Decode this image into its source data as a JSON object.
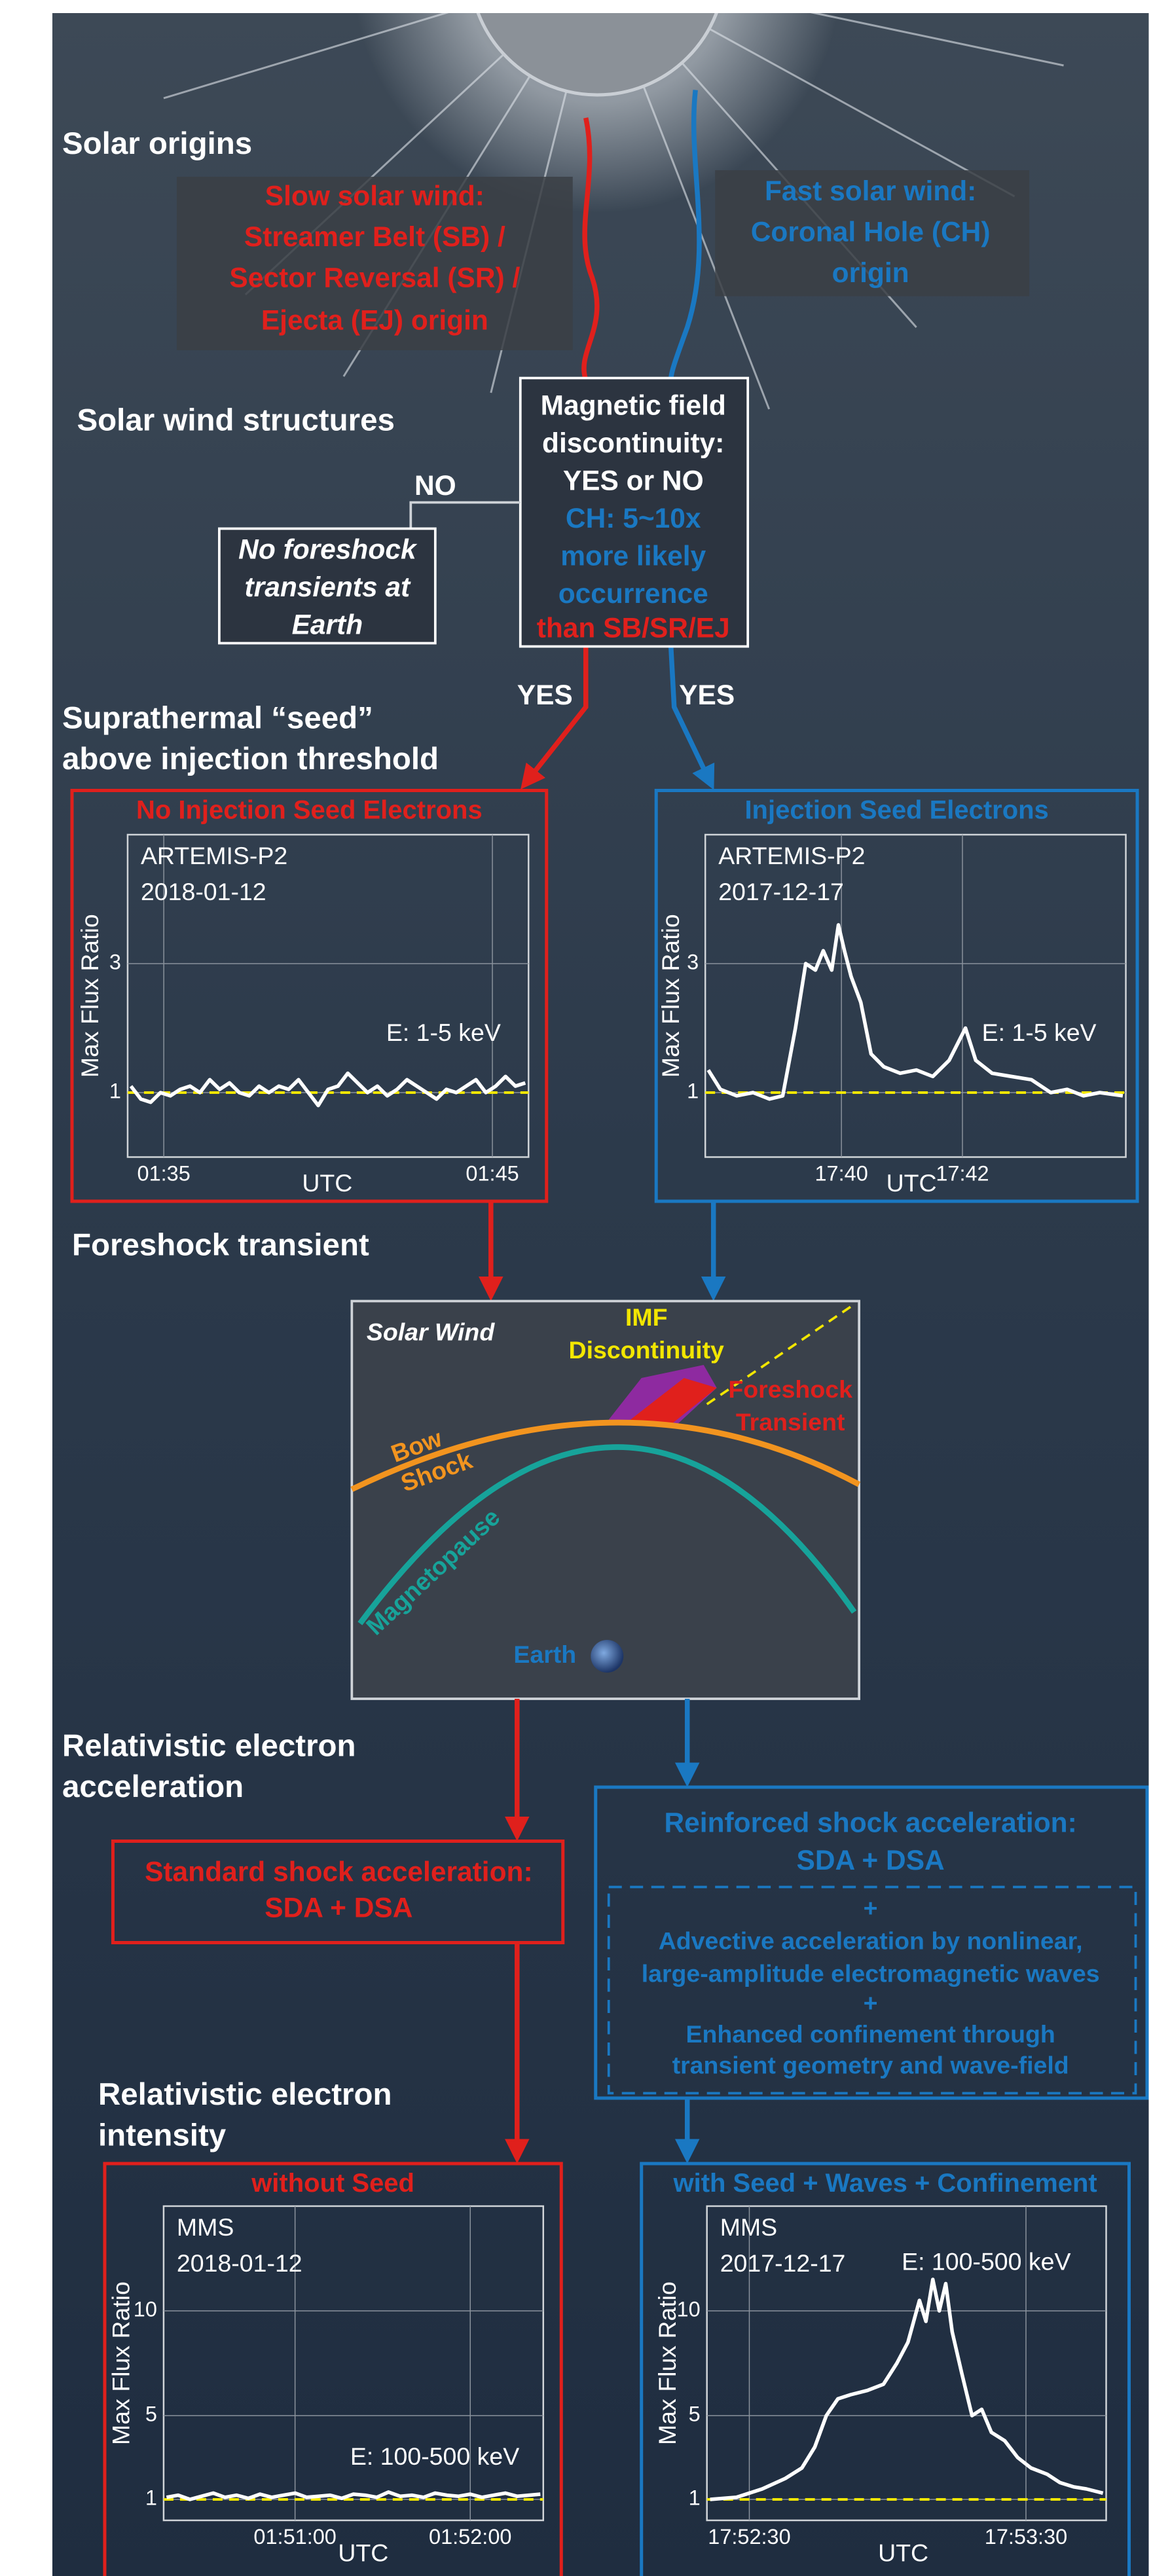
{
  "diagram": {
    "headings": [
      "Solar origins",
      "Solar wind structures",
      "Suprathermal “seed”",
      "above injection threshold",
      "Foreshock transient",
      "Relativistic electron",
      "acceleration",
      "Relativistic electron",
      "intensity"
    ],
    "slow_wind": [
      "Slow solar wind:",
      "Streamer Belt (SB) /",
      "Sector Reversal (SR) /",
      "Ejecta (EJ) origin"
    ],
    "fast_wind": [
      "Fast solar wind:",
      "Coronal Hole (CH)",
      "origin"
    ],
    "discontinuity_box": [
      "Magnetic field",
      "discontinuity:",
      "YES or NO",
      "CH: 5~10x",
      "more likely",
      "occurrence",
      "than SB/SR/EJ"
    ],
    "no_label": "NO",
    "no_box": [
      "No foreshock",
      "transients at",
      "Earth"
    ],
    "yes_labels": [
      "YES",
      "YES"
    ],
    "schematic": {
      "solar_wind": "Solar Wind",
      "imf": [
        "IMF",
        "Discontinuity"
      ],
      "foreshock": [
        "Foreshock",
        "Transient"
      ],
      "bow_shock": [
        "Bow",
        "Shock"
      ],
      "magnetopause": "Magnetopause",
      "earth": "Earth"
    },
    "standard_box": [
      "Standard shock acceleration:",
      "SDA + DSA"
    ],
    "reinforced_box": [
      "Reinforced shock acceleration:",
      "SDA + DSA"
    ],
    "reinforced_details": [
      "+",
      "Advective acceleration by nonlinear,",
      "large-amplitude electromagnetic waves",
      "+",
      "Enhanced confinement through",
      "transient geometry and wave-field"
    ]
  },
  "chart_data": [
    {
      "type": "line",
      "title": "No Injection Seed Electrons",
      "title_color": "#e0201c",
      "instrument": "ARTEMIS-P2",
      "date": "2018-01-12",
      "energy": "E: 1-5 keV",
      "ylabel": "Max Flux Ratio",
      "xlabel": "UTC",
      "xlim": [
        93.9,
        106.1
      ],
      "ylim": [
        0,
        5
      ],
      "grid": true,
      "xticks": [
        {
          "value": 95,
          "label": "01:35"
        },
        {
          "value": 105,
          "label": "01:45"
        }
      ],
      "yticks": [
        1,
        3
      ],
      "reference_line": 1,
      "reference_color": "#f2e600",
      "color": "#ffffff",
      "x": [
        94.0,
        94.3,
        94.6,
        94.9,
        95.2,
        95.5,
        95.8,
        96.1,
        96.4,
        96.7,
        97.0,
        97.3,
        97.6,
        97.9,
        98.2,
        98.5,
        98.8,
        99.1,
        99.4,
        99.7,
        100.0,
        100.3,
        100.6,
        100.9,
        101.2,
        101.5,
        101.8,
        102.1,
        102.4,
        102.7,
        103.0,
        103.3,
        103.6,
        103.9,
        104.2,
        104.5,
        104.8,
        105.1,
        105.4,
        105.7,
        106.0
      ],
      "values": [
        1.1,
        0.9,
        0.85,
        1.0,
        0.95,
        1.05,
        1.1,
        1.0,
        1.2,
        1.05,
        1.15,
        1.0,
        0.95,
        1.1,
        1.0,
        1.1,
        1.05,
        1.2,
        1.0,
        0.8,
        1.05,
        1.1,
        1.3,
        1.15,
        1.0,
        1.1,
        0.95,
        1.05,
        1.2,
        1.1,
        1.0,
        0.9,
        1.05,
        1.0,
        1.1,
        1.2,
        1.0,
        1.1,
        1.25,
        1.1,
        1.15
      ]
    },
    {
      "type": "line",
      "title": "Injection Seed Electrons",
      "title_color": "#1a78c2",
      "instrument": "ARTEMIS-P2",
      "date": "2017-12-17",
      "energy": "E: 1-5 keV",
      "ylabel": "Max Flux Ratio",
      "xlabel": "UTC",
      "xlim": [
        1057.75,
        1064.7
      ],
      "ylim": [
        0,
        5
      ],
      "grid": true,
      "xticks": [
        {
          "value": 1060,
          "label": "17:40"
        },
        {
          "value": 1062,
          "label": "17:42"
        }
      ],
      "yticks": [
        1,
        3
      ],
      "reference_line": 1,
      "reference_color": "#f2e600",
      "color": "#ffffff",
      "x": [
        1057.8,
        1058.0,
        1058.27,
        1058.54,
        1058.81,
        1059.03,
        1059.24,
        1059.41,
        1059.57,
        1059.7,
        1059.84,
        1059.95,
        1060.05,
        1060.16,
        1060.32,
        1060.49,
        1060.7,
        1060.97,
        1061.24,
        1061.51,
        1061.78,
        1062.05,
        1062.22,
        1062.49,
        1062.81,
        1063.14,
        1063.46,
        1063.73,
        1064.0,
        1064.27,
        1064.65
      ],
      "values": [
        1.35,
        1.05,
        0.95,
        1.0,
        0.9,
        0.95,
        2.0,
        3.0,
        2.9,
        3.2,
        2.9,
        3.6,
        3.2,
        2.8,
        2.4,
        1.6,
        1.4,
        1.3,
        1.35,
        1.25,
        1.5,
        2.0,
        1.5,
        1.3,
        1.25,
        1.2,
        1.0,
        1.05,
        0.95,
        1.0,
        0.95
      ]
    },
    {
      "type": "line",
      "title": "without Seed",
      "title_color": "#e0201c",
      "instrument": "MMS",
      "date": "2018-01-12",
      "energy": "E: 100-500 keV",
      "ylabel": "Max Flux Ratio",
      "xlabel": "UTC",
      "xlim": [
        6615,
        6745
      ],
      "ylim": [
        0,
        15
      ],
      "grid": true,
      "xticks": [
        {
          "value": 6660,
          "label": "01:51:00"
        },
        {
          "value": 6720,
          "label": "01:52:00"
        }
      ],
      "yticks": [
        1,
        5,
        10
      ],
      "reference_line": 1,
      "reference_color": "#f2e600",
      "color": "#ffffff",
      "x": [
        6616,
        6620,
        6624,
        6628,
        6632,
        6636,
        6640,
        6644,
        6648,
        6652,
        6656,
        6660,
        6664,
        6668,
        6672,
        6676,
        6680,
        6684,
        6688,
        6692,
        6696,
        6700,
        6704,
        6708,
        6712,
        6716,
        6720,
        6724,
        6728,
        6732,
        6736,
        6740,
        6744
      ],
      "values": [
        1.1,
        1.2,
        1.0,
        1.15,
        1.3,
        1.1,
        1.2,
        1.05,
        1.25,
        1.1,
        1.2,
        1.3,
        1.1,
        1.15,
        1.2,
        1.05,
        1.25,
        1.2,
        1.1,
        1.35,
        1.15,
        1.2,
        1.1,
        1.3,
        1.2,
        1.15,
        1.25,
        1.1,
        1.2,
        1.3,
        1.15,
        1.2,
        1.25
      ]
    },
    {
      "type": "line",
      "title": "with Seed + Waves + Confinement",
      "title_color": "#1a78c2",
      "instrument": "MMS",
      "date": "2017-12-17",
      "energy": "E: 100-500 keV",
      "ylabel": "Max Flux Ratio",
      "xlabel": "UTC",
      "xlim": [
        64340.8,
        64427.4
      ],
      "ylim": [
        0,
        15
      ],
      "grid": true,
      "xticks": [
        {
          "value": 64350,
          "label": "17:52:30"
        },
        {
          "value": 64410,
          "label": "17:53:30"
        }
      ],
      "yticks": [
        1,
        5,
        10
      ],
      "reference_line": 1,
      "reference_color": "#f2e600",
      "color": "#ffffff",
      "x": [
        64341.5,
        64347.2,
        64352.8,
        64357.8,
        64361.4,
        64364.2,
        64366.7,
        64369.2,
        64372.0,
        64375.6,
        64379.1,
        64382.0,
        64384.4,
        64386.9,
        64388.3,
        64389.8,
        64391.2,
        64392.6,
        64394.0,
        64396.1,
        64398.3,
        64400.4,
        64402.5,
        64405.4,
        64408.2,
        64411.1,
        64414.6,
        64417.4,
        64420.3,
        64423.1,
        64426.7
      ],
      "values": [
        1.0,
        1.1,
        1.5,
        2.0,
        2.5,
        3.5,
        5.0,
        5.8,
        6.0,
        6.2,
        6.5,
        7.5,
        8.5,
        10.5,
        9.5,
        11.5,
        10.0,
        11.3,
        9.0,
        7.0,
        5.0,
        5.3,
        4.2,
        3.8,
        3.0,
        2.5,
        2.2,
        1.8,
        1.6,
        1.5,
        1.3
      ]
    }
  ]
}
